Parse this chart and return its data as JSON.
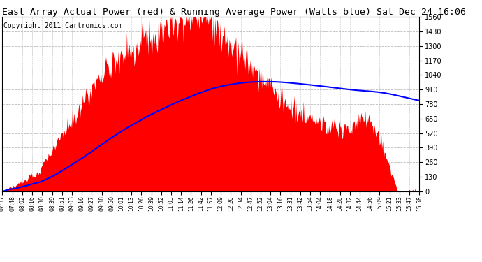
{
  "title": "East Array Actual Power (red) & Running Average Power (Watts blue) Sat Dec 24 16:06",
  "copyright": "Copyright 2011 Cartronics.com",
  "y_ticks": [
    0.0,
    130.0,
    260.0,
    390.0,
    520.0,
    650.0,
    780.0,
    910.0,
    1040.0,
    1170.0,
    1300.0,
    1430.0,
    1559.9
  ],
  "ylim": [
    0,
    1559.9
  ],
  "x_labels": [
    "07:37",
    "07:48",
    "08:02",
    "08:16",
    "08:30",
    "08:39",
    "08:51",
    "09:03",
    "09:16",
    "09:27",
    "09:38",
    "09:50",
    "10:01",
    "10:13",
    "10:26",
    "10:39",
    "10:52",
    "11:03",
    "11:14",
    "11:26",
    "11:42",
    "11:57",
    "12:09",
    "12:20",
    "12:34",
    "12:47",
    "12:52",
    "13:04",
    "13:16",
    "13:31",
    "13:42",
    "13:54",
    "14:04",
    "14:18",
    "14:28",
    "14:32",
    "14:44",
    "14:56",
    "15:09",
    "15:21",
    "15:33",
    "15:47",
    "15:58"
  ],
  "bg_color": "#ffffff",
  "plot_bg_color": "#ffffff",
  "grid_color": "#bbbbbb",
  "actual_color": "#ff0000",
  "avg_color": "#0000ff",
  "title_fontsize": 9.5,
  "copyright_fontsize": 7
}
